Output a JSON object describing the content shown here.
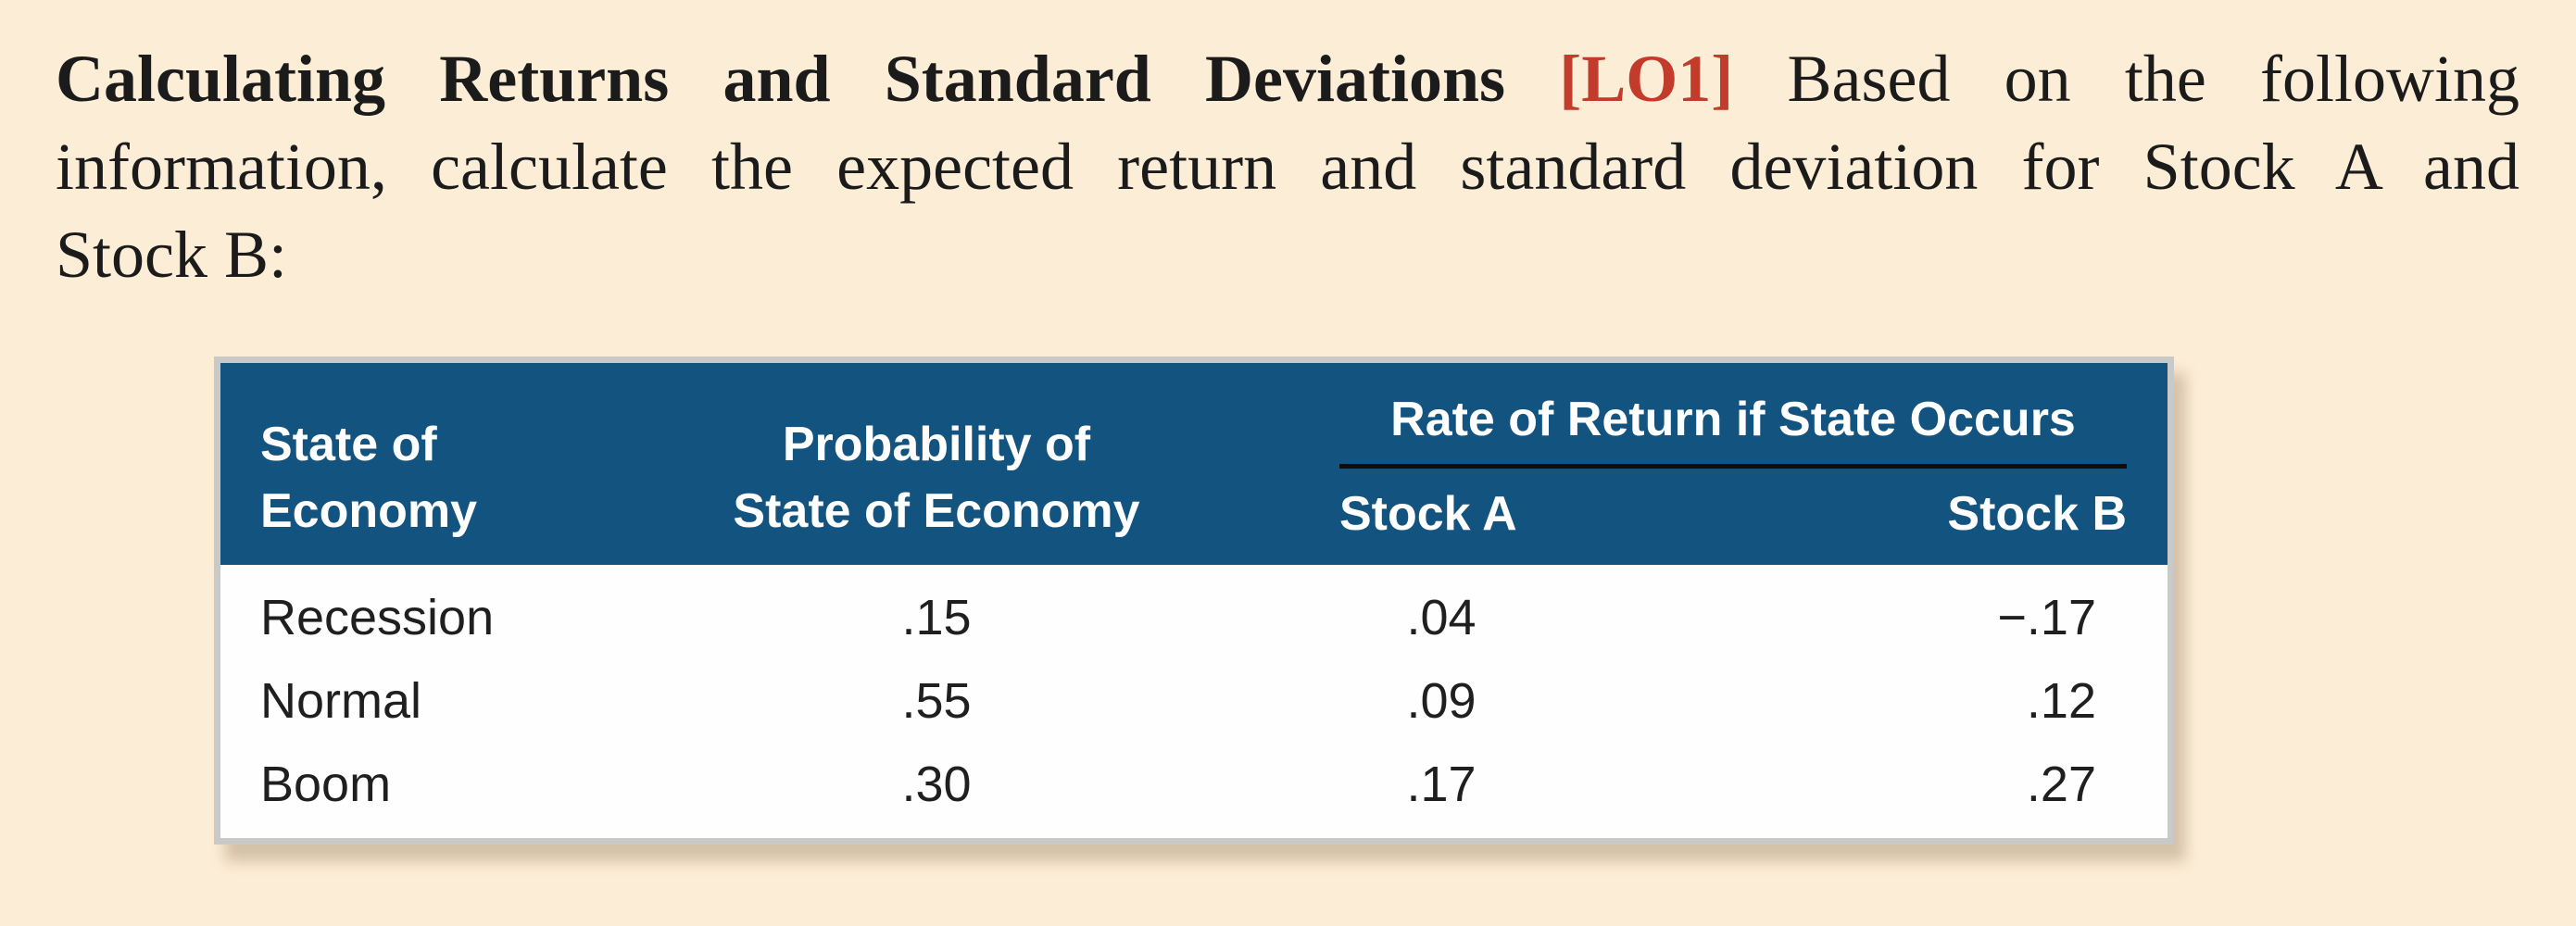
{
  "page": {
    "background_color": "#fcedd6",
    "text_color": "#1b1b1b"
  },
  "problem": {
    "title_bold": "Calculating Returns and Standard Deviations",
    "tag": "[LO1]",
    "tag_color": "#c23b2b",
    "line1_rest": "Based on the following",
    "line2": "information, calculate the expected return and standard deviation for Stock A and",
    "line3": "Stock B:"
  },
  "table": {
    "header_bg_color": "#12537f",
    "header_text_color": "#ffffff",
    "border_color": "#c9c9c8",
    "header": {
      "col1_line1": "State of",
      "col1_line2": "Economy",
      "col2_line1": "Probability of",
      "col2_line2": "State of Economy",
      "span_label": "Rate of Return if State Occurs",
      "col3": "Stock A",
      "col4": "Stock B"
    },
    "rows": [
      {
        "state": "Recession",
        "probability": ".15",
        "stock_a": ".04",
        "stock_b": "−.17"
      },
      {
        "state": "Normal",
        "probability": ".55",
        "stock_a": ".09",
        "stock_b": ".12"
      },
      {
        "state": "Boom",
        "probability": ".30",
        "stock_a": ".17",
        "stock_b": ".27"
      }
    ]
  },
  "chart_data": {
    "type": "table",
    "title": "Rate of Return if State Occurs",
    "columns": [
      "State of Economy",
      "Probability of State of Economy",
      "Stock A",
      "Stock B"
    ],
    "rows": [
      [
        "Recession",
        0.15,
        0.04,
        -0.17
      ],
      [
        "Normal",
        0.55,
        0.09,
        0.12
      ],
      [
        "Boom",
        0.3,
        0.17,
        0.27
      ]
    ]
  }
}
